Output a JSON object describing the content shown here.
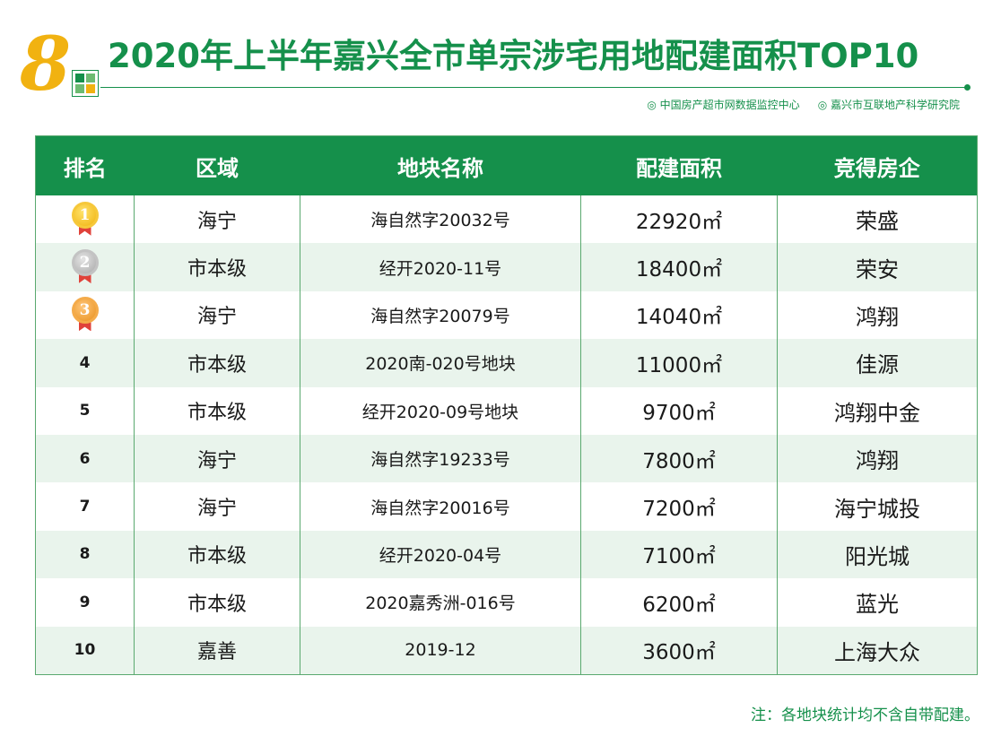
{
  "header": {
    "badge_number": "8",
    "title": "2020年上半年嘉兴全市单宗涉宅用地配建面积TOP10",
    "source_1": "中国房产超市网数据监控中心",
    "source_2": "嘉兴市互联地产科学研究院"
  },
  "table": {
    "headers": [
      "排名",
      "区域",
      "地块名称",
      "配建面积",
      "竞得房企"
    ],
    "rows": [
      {
        "rank": "1",
        "district": "海宁",
        "plot": "海自然字20032号",
        "area": "22920㎡",
        "company": "荣盛"
      },
      {
        "rank": "2",
        "district": "市本级",
        "plot": "经开2020-11号",
        "area": "18400㎡",
        "company": "荣安"
      },
      {
        "rank": "3",
        "district": "海宁",
        "plot": "海自然字20079号",
        "area": "14040㎡",
        "company": "鸿翔"
      },
      {
        "rank": "4",
        "district": "市本级",
        "plot": "2020南-020号地块",
        "area": "11000㎡",
        "company": "佳源"
      },
      {
        "rank": "5",
        "district": "市本级",
        "plot": "经开2020-09号地块",
        "area": "9700㎡",
        "company": "鸿翔中金"
      },
      {
        "rank": "6",
        "district": "海宁",
        "plot": "海自然字19233号",
        "area": "7800㎡",
        "company": "鸿翔"
      },
      {
        "rank": "7",
        "district": "海宁",
        "plot": "海自然字20016号",
        "area": "7200㎡",
        "company": "海宁城投"
      },
      {
        "rank": "8",
        "district": "市本级",
        "plot": "经开2020-04号",
        "area": "7100㎡",
        "company": "阳光城"
      },
      {
        "rank": "9",
        "district": "市本级",
        "plot": "2020嘉秀洲-016号",
        "area": "6200㎡",
        "company": "蓝光"
      },
      {
        "rank": "10",
        "district": "嘉善",
        "plot": "2019-12",
        "area": "3600㎡",
        "company": "上海大众"
      }
    ]
  },
  "footnote": "注：各地块统计均不含自带配建。",
  "colors": {
    "brand_green": "#15904b",
    "row_alt": "#e9f4ec",
    "badge_gold": "#f1b211",
    "ribbon_red": "#e0423a"
  },
  "icons": [
    "gold-medal-icon",
    "silver-medal-icon",
    "bronze-medal-icon",
    "grid-logo-icon"
  ]
}
